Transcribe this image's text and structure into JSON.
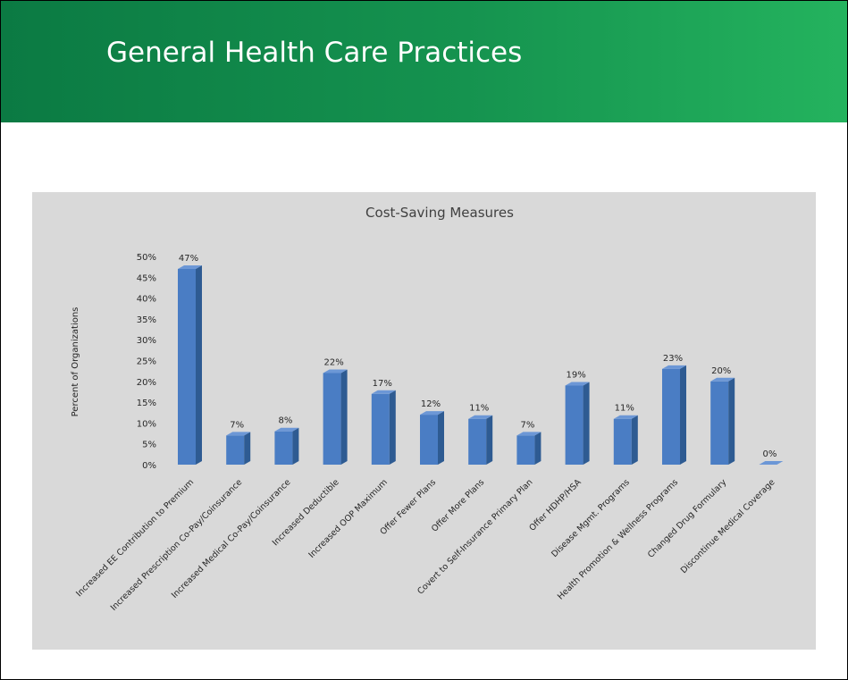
{
  "header": {
    "title": "General Health Care Practices"
  },
  "colors": {
    "header_start": "#0b7a43",
    "header_end": "#24b35e",
    "bar_front": "#4a7dc4",
    "bar_side": "#2e5b92",
    "bar_top": "#6c97d6",
    "panel": "#d9d9d9"
  },
  "chart_data": {
    "type": "bar",
    "title": "Cost-Saving Measures",
    "xlabel": "",
    "ylabel": "Percent of Organizations",
    "ylim": [
      0,
      50
    ],
    "yticks": [
      "0%",
      "5%",
      "10%",
      "15%",
      "20%",
      "25%",
      "30%",
      "35%",
      "40%",
      "45%",
      "50%"
    ],
    "grid": false,
    "categories": [
      "Increased EE Contribution to Premium",
      "Increased Prescription Co-Pay/Coinsurance",
      "Increased Medical Co-Pay/Coinsurance",
      "Increased Deductible",
      "Increased OOP Maximum",
      "Offer Fewer Plans",
      "Offer More Plans",
      "Covert to Self-Insurance Primary Plan",
      "Offer HDHP/HSA",
      "Disease Mgmt. Programs",
      "Health Promotion & Wellness Programs",
      "Changed Drug Formulary",
      "Discontinue Medical Coverage"
    ],
    "values": [
      47,
      7,
      8,
      22,
      17,
      12,
      11,
      7,
      19,
      11,
      23,
      20,
      0
    ],
    "data_labels": [
      "47%",
      "7%",
      "8%",
      "22%",
      "17%",
      "12%",
      "11%",
      "7%",
      "19%",
      "11%",
      "23%",
      "20%",
      "0%"
    ]
  }
}
